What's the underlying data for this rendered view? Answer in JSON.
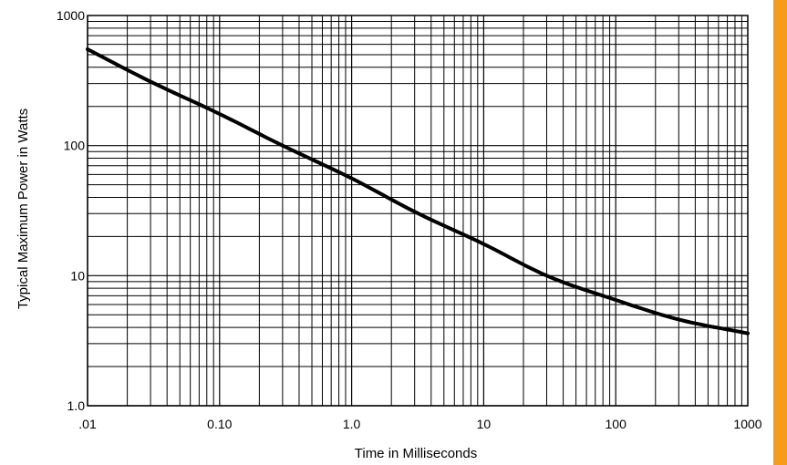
{
  "chart_data": {
    "type": "line",
    "title": "",
    "xlabel": "Time in Milliseconds",
    "ylabel": "Typical Maximum Power in Watts",
    "x_scale": "log",
    "y_scale": "log",
    "xlim": [
      0.01,
      1000
    ],
    "ylim": [
      1,
      1000
    ],
    "x_tick_labels": [
      ".01",
      "0.10",
      "1.0",
      "10",
      "100",
      "1000"
    ],
    "y_tick_labels": [
      "1000",
      "100",
      "10",
      "1.0"
    ],
    "grid": true,
    "series": [
      {
        "x": [
          0.01,
          0.03,
          0.1,
          0.3,
          1,
          3,
          10,
          30,
          100,
          300,
          1000
        ],
        "y": [
          550,
          310,
          175,
          100,
          56,
          31,
          17.5,
          10,
          6.5,
          4.6,
          3.6
        ]
      }
    ]
  },
  "theme": {
    "line_color": "#000000",
    "grid_color": "#000000",
    "side_bar_color": "#f59c1a"
  }
}
